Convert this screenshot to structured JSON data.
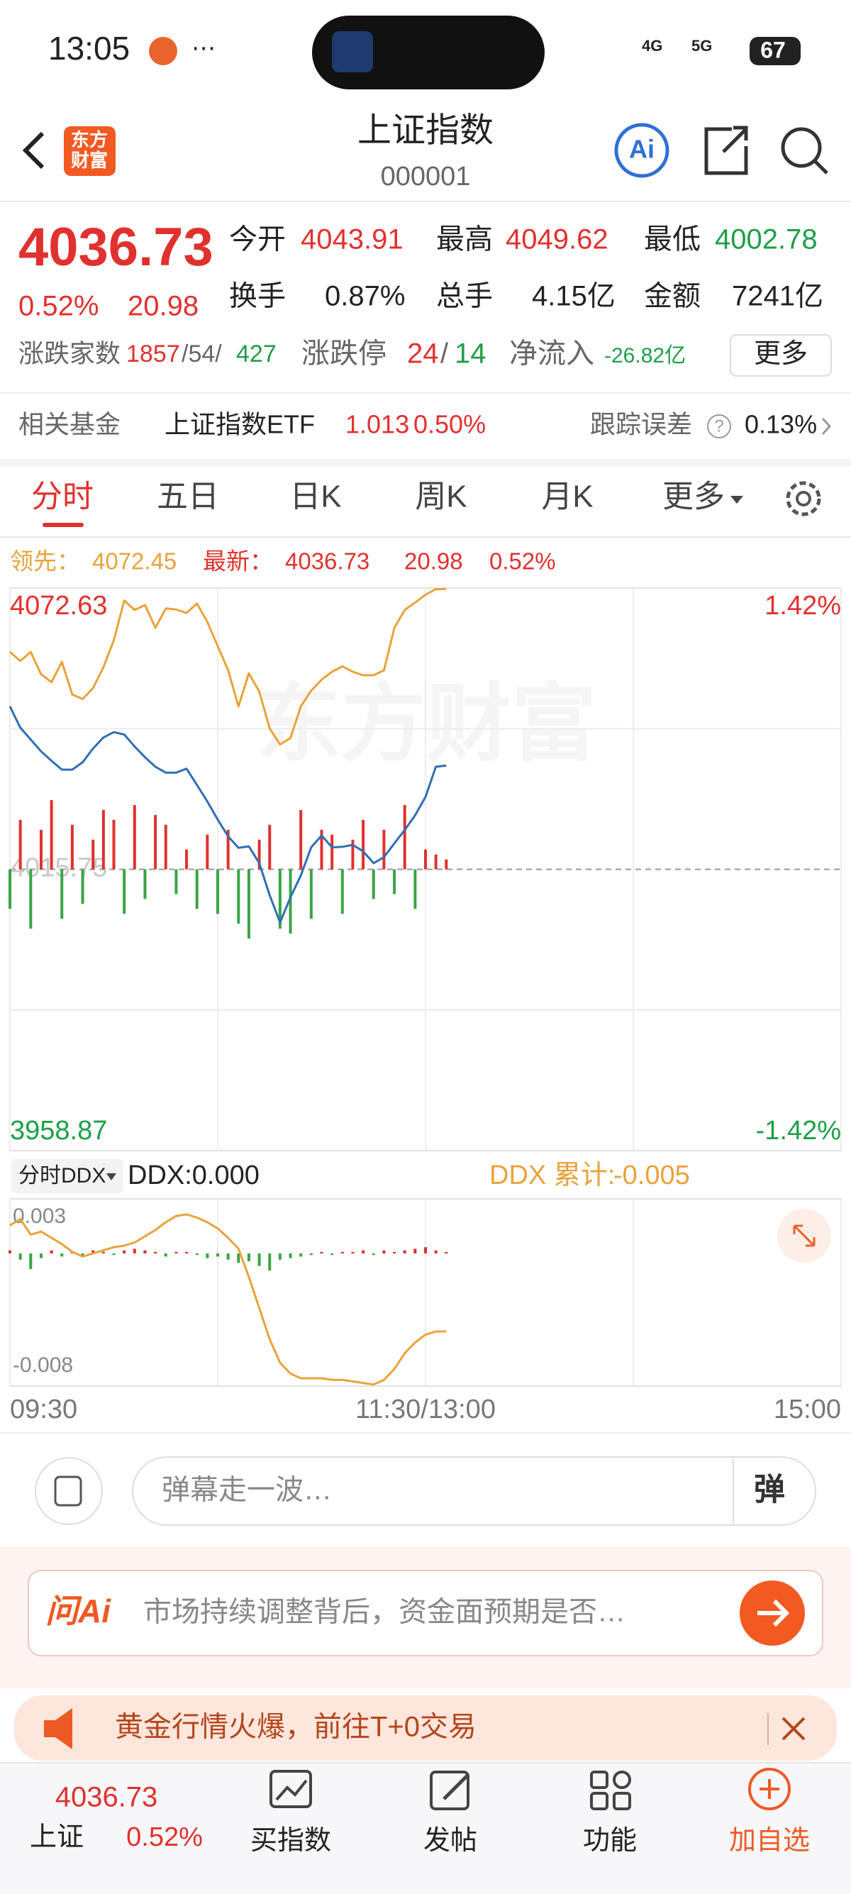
{
  "status_bar": {
    "time": "13:05",
    "network1": "4G",
    "network2": "5G",
    "battery": "67"
  },
  "header": {
    "logo": [
      "东方",
      "财富"
    ],
    "title": "上证指数",
    "code": "000001",
    "ai": "Ai"
  },
  "quote": {
    "price": "4036.73",
    "change_pct": "0.52%",
    "change": "20.98",
    "stats": [
      {
        "label": "今开",
        "value": "4043.91"
      },
      {
        "label": "最高",
        "value": "4049.62"
      },
      {
        "label": "最低",
        "value": "4002.78"
      },
      {
        "label": "换手",
        "value": "0.87%"
      },
      {
        "label": "总手",
        "value": "4.15亿"
      },
      {
        "label": "金额",
        "value": "7241亿"
      }
    ],
    "breadth_label": "涨跌家数",
    "up_count": "1857",
    "flat_count": "/54/",
    "down_count": "427",
    "limit_label": "涨跌停",
    "limit_up": "24",
    "limit_sep": "/",
    "limit_down": "14",
    "inflow_label": "净流入",
    "inflow": "-26.82亿",
    "more": "更多"
  },
  "fund": {
    "label": "相关基金",
    "name": "上证指数ETF",
    "price": "1.013",
    "change": "0.50%",
    "error_label": "跟踪误差",
    "help": "?",
    "error": "0.13%"
  },
  "tabs": [
    "分时",
    "五日",
    "日K",
    "周K",
    "月K",
    "更多"
  ],
  "chart_data": [
    {
      "type": "line",
      "watermark": "东方财富",
      "legend_change": "20.98",
      "legend_change_pct": "0.52%",
      "x": [
        0,
        3,
        6,
        9,
        12,
        15,
        18,
        21,
        24,
        27,
        30,
        33,
        36,
        39,
        42,
        45,
        48,
        51,
        54,
        57,
        60,
        63,
        66,
        69,
        72,
        75,
        78,
        81,
        84,
        87,
        90,
        93,
        96,
        99,
        102,
        105,
        108,
        111,
        114,
        117,
        120,
        123,
        126
      ],
      "series": [
        {
          "name": "领先：",
          "color": "#e9a23b",
          "values": [
            4059.7,
            4057.9,
            4059.7,
            4055.2,
            4053.6,
            4057.7,
            4051.1,
            4050.2,
            4052.4,
            4056.6,
            4062.1,
            4070.1,
            4068.2,
            4069.2,
            4064.6,
            4068.5,
            4068.3,
            4067.6,
            4069.5,
            4065.8,
            4060.9,
            4056.0,
            4048.7,
            4055.4,
            4051.7,
            4044.2,
            4041.0,
            4042.3,
            4048.7,
            4051.9,
            4054.1,
            4055.7,
            4056.8,
            4055.7,
            4055.0,
            4055.0,
            4056.0,
            4064.6,
            4068.2,
            4069.7,
            4071.3,
            4072.4,
            4072.45
          ]
        },
        {
          "name": "最新：",
          "color": "#2f6fb3",
          "values": [
            4048.7,
            4044.4,
            4042.0,
            4039.6,
            4037.7,
            4035.9,
            4035.9,
            4037.4,
            4040.2,
            4042.4,
            4043.5,
            4043.0,
            4040.6,
            4038.4,
            4036.5,
            4035.3,
            4035.3,
            4036.1,
            4032.8,
            4029.5,
            4025.8,
            4022.4,
            4020.1,
            4020.4,
            4017.0,
            4010.5,
            4005.0,
            4010.1,
            4014.5,
            4020.2,
            4022.6,
            4020.2,
            4020.3,
            4020.7,
            4019.4,
            4017.0,
            4018.2,
            4021.0,
            4023.7,
            4026.7,
            4030.4,
            4036.5,
            4036.73
          ]
        }
      ],
      "bars": {
        "up_color": "#e0312e",
        "down_color": "#3aa544",
        "values": [
          -8,
          10,
          -12,
          8,
          14,
          -10,
          9,
          -7,
          6,
          12,
          10,
          -9,
          13,
          -6,
          11,
          9,
          -5,
          4,
          -8,
          7,
          -9,
          8,
          -11,
          -14,
          6,
          9,
          -12,
          -13,
          12,
          -10,
          8,
          7,
          -9,
          6,
          10,
          -6,
          8,
          -5,
          13,
          -8,
          4,
          3,
          2
        ]
      },
      "xlim": [
        0,
        240
      ],
      "xticks": [
        {
          "value": 0,
          "label": "09:30"
        },
        {
          "value": 120,
          "label": "11:30/13:00"
        },
        {
          "value": 240,
          "label": "15:00"
        }
      ],
      "ylim": [
        3958.87,
        4072.63
      ],
      "yticks": [
        3958.87,
        4015.75,
        4072.63
      ],
      "y2lim": [
        -1.42,
        1.42
      ],
      "y2ticks": [
        {
          "value": -1.42,
          "label": "-1.42%"
        },
        {
          "value": 1.42,
          "label": "1.42%"
        }
      ],
      "grid": true
    },
    {
      "type": "line",
      "selector": "分时DDX",
      "current_label": "DDX:0.000",
      "x": [
        0,
        3,
        6,
        9,
        12,
        15,
        18,
        21,
        24,
        27,
        30,
        33,
        36,
        39,
        42,
        45,
        48,
        51,
        54,
        57,
        60,
        63,
        66,
        69,
        72,
        75,
        78,
        81,
        84,
        87,
        90,
        93,
        96,
        99,
        102,
        105,
        108,
        111,
        114,
        117,
        120,
        123,
        126
      ],
      "series": [
        {
          "name": "DDX 累计:",
          "color": "#e9a23b",
          "values": [
            0.0018,
            0.0022,
            0.0012,
            0.0014,
            0.001,
            0.0006,
            0.0001,
            -0.0002,
            0.0,
            0.0002,
            0.0004,
            0.0005,
            0.0007,
            0.0011,
            0.0015,
            0.002,
            0.0024,
            0.0025,
            0.0023,
            0.002,
            0.0016,
            0.001,
            0.0003,
            -0.0015,
            -0.0035,
            -0.0055,
            -0.007,
            -0.0077,
            -0.008,
            -0.008,
            -0.008,
            -0.0081,
            -0.0081,
            -0.0082,
            -0.0083,
            -0.0084,
            -0.0081,
            -0.0074,
            -0.0064,
            -0.0057,
            -0.0052,
            -0.005,
            -0.005
          ]
        }
      ],
      "bars": {
        "up_color": "#e0312e",
        "down_color": "#3aa544",
        "values": [
          0.0002,
          -0.0004,
          -0.001,
          -0.0003,
          0.0002,
          -0.0002,
          0.0001,
          -0.0002,
          0.0002,
          0.0001,
          -0.0001,
          0.0002,
          0.0003,
          0.0002,
          0.0001,
          -0.0002,
          0.0001,
          0.0001,
          -0.0001,
          -0.0003,
          -0.0002,
          -0.0004,
          -0.0006,
          -0.0005,
          -0.0008,
          -0.0011,
          -0.0004,
          -0.0003,
          -0.0002,
          -0.0001,
          0.0001,
          -0.0001,
          0.0001,
          0.0001,
          0.0002,
          -0.0001,
          0.0002,
          0.0001,
          0.0002,
          0.0003,
          0.0004,
          0.0002,
          0.0001
        ]
      },
      "xlim": [
        0,
        240
      ],
      "ylim": [
        -0.0085,
        0.0035
      ],
      "yticks": [
        -0.008,
        0.003
      ]
    }
  ],
  "comment": {
    "placeholder": "弹幕走一波…",
    "button": "弹"
  },
  "ask_ai": {
    "brand": "问Ai",
    "text": "市场持续调整背后，资金面预期是否…"
  },
  "banner": {
    "text": "黄金行情火爆，前往T+0交易"
  },
  "bottom_nav": {
    "price": "4036.73",
    "name": "上证",
    "change": "0.52%",
    "items": [
      "买指数",
      "发帖",
      "功能",
      "加自选"
    ]
  }
}
